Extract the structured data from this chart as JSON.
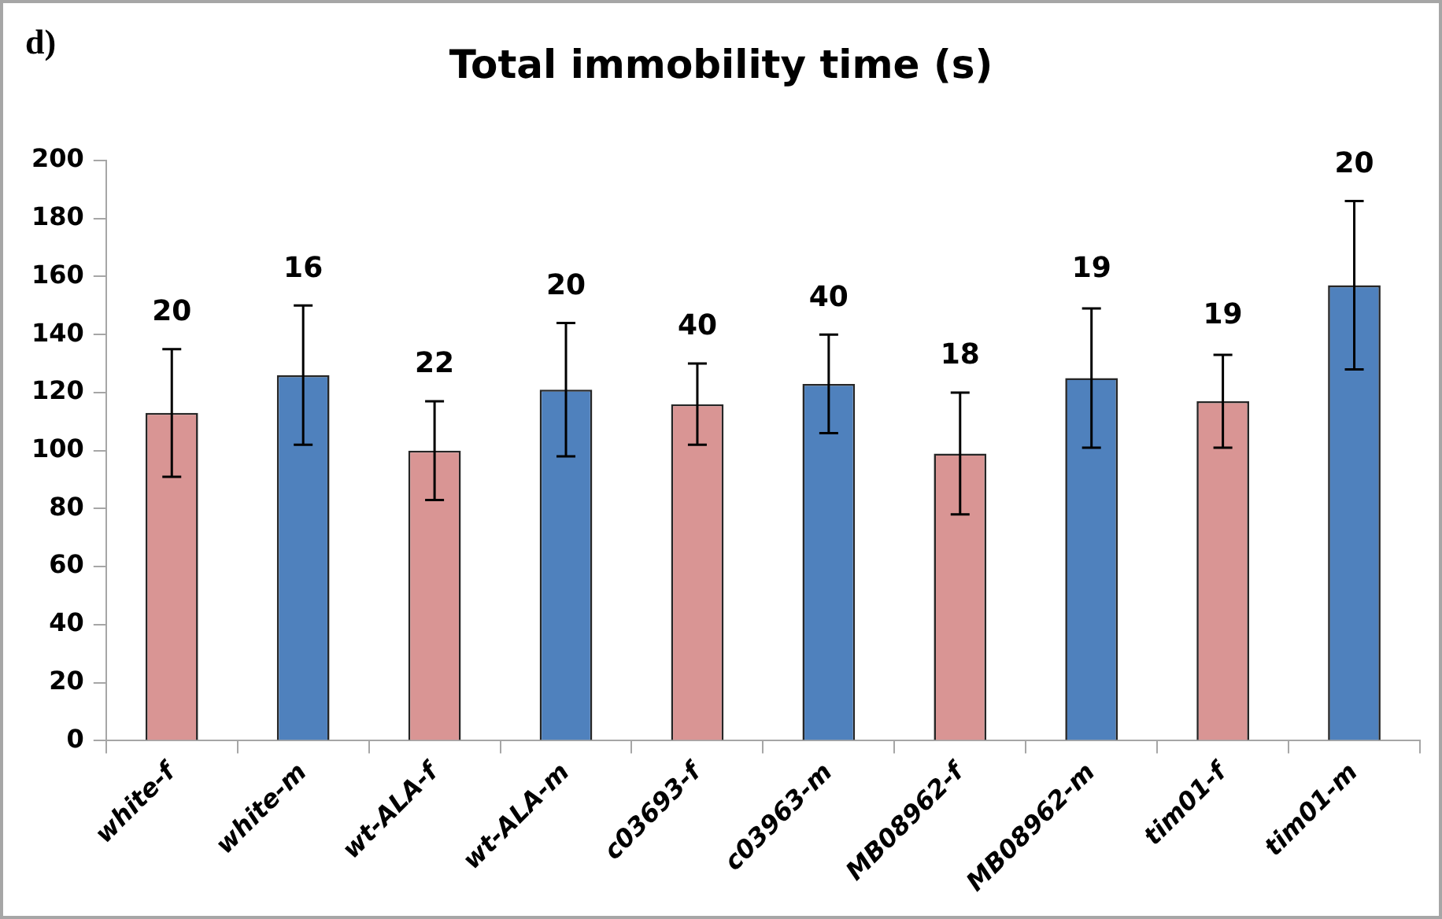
{
  "chart_data": {
    "type": "bar",
    "title": "Total immobility time (s)",
    "categories": [
      "white-f",
      "white-m",
      "wt-ALA-f",
      "wt-ALA-m",
      "c03693-f",
      "c03963-m",
      "MB08962-f",
      "MB08962-m",
      "tim01-f",
      "tim01-m"
    ],
    "values": [
      113,
      126,
      100,
      121,
      116,
      123,
      99,
      125,
      117,
      157
    ],
    "errors": [
      22,
      24,
      17,
      23,
      14,
      17,
      21,
      24,
      16,
      29
    ],
    "colors": [
      "#d99594",
      "#4f81bd",
      "#d99594",
      "#4f81bd",
      "#d99594",
      "#4f81bd",
      "#d99594",
      "#4f81bd",
      "#d99594",
      "#4f81bd"
    ],
    "ylim": [
      0,
      200
    ],
    "yticks": [
      0,
      20,
      40,
      60,
      80,
      100,
      120,
      140,
      160,
      180,
      200
    ],
    "annotations": [
      "d)",
      {
        "text": "20",
        "x": "white-f",
        "y": 135
      },
      {
        "text": "16",
        "x": "white-m",
        "y": 150
      },
      {
        "text": "22",
        "x": "wt-ALA-f",
        "y": 117
      },
      {
        "text": "20",
        "x": "wt-ALA-m",
        "y": 144
      },
      {
        "text": "40",
        "x": "c03693-f",
        "y": 130
      },
      {
        "text": "40",
        "x": "c03963-m",
        "y": 140
      },
      {
        "text": "18",
        "x": "MB08962-f",
        "y": 120
      },
      {
        "text": "19",
        "x": "MB08962-m",
        "y": 150
      },
      {
        "text": "19",
        "x": "tim01-f",
        "y": 134
      },
      {
        "text": "20",
        "x": "tim01-m",
        "y": 186
      }
    ]
  }
}
